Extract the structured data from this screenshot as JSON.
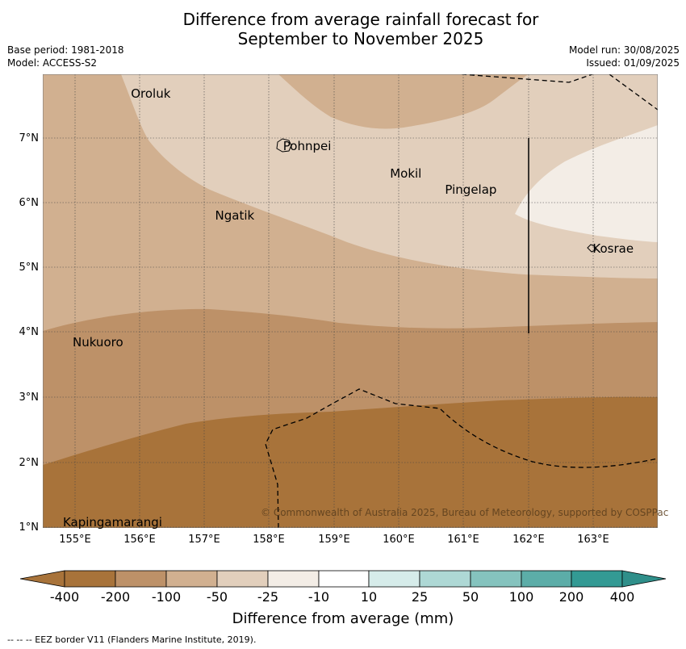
{
  "title_line1": "Difference from average rainfall forecast for",
  "title_line2": "September to November 2025",
  "base_period": "Base period: 1981-2018",
  "model": "Model: ACCESS-S2",
  "model_run": "Model run: 30/08/2025",
  "issued": "Issued: 01/09/2025",
  "copyright": "© Commonwealth of Australia 2025, Bureau of Meteorology, supported by COSPPac",
  "places": [
    {
      "name": "Oroluk",
      "lon": 155.85,
      "lat": 7.68
    },
    {
      "name": "Pohnpei",
      "lon": 158.2,
      "lat": 6.87
    },
    {
      "name": "Mokil",
      "lon": 159.85,
      "lat": 6.45
    },
    {
      "name": "Pingelap",
      "lon": 160.7,
      "lat": 6.2
    },
    {
      "name": "Ngatik",
      "lon": 157.15,
      "lat": 5.8
    },
    {
      "name": "Kosrae",
      "lon": 162.98,
      "lat": 5.3
    },
    {
      "name": "Nukuoro",
      "lon": 154.95,
      "lat": 3.85
    },
    {
      "name": "Kapingamarangi",
      "lon": 154.8,
      "lat": 1.07
    }
  ],
  "latitude_ticks": [
    "7°N",
    "6°N",
    "5°N",
    "4°N",
    "3°N",
    "2°N",
    "1°N"
  ],
  "longitude_ticks": [
    "155°E",
    "156°E",
    "157°E",
    "158°E",
    "159°E",
    "160°E",
    "161°E",
    "162°E",
    "163°E"
  ],
  "colorbar": {
    "title": "Difference from average (mm)",
    "labels": [
      "-400",
      "-200",
      "-100",
      "-50",
      "-25",
      "-10",
      "10",
      "25",
      "50",
      "100",
      "200",
      "400"
    ],
    "colors": [
      "#a8733a",
      "#bd9168",
      "#d1b090",
      "#e2cfbc",
      "#f3ede6",
      "#ffffff",
      "#d6ecea",
      "#aed8d5",
      "#85c3be",
      "#5cada8",
      "#339a94",
      "#2f8f8a"
    ]
  },
  "legend_source": "--  --  -- EEZ border V11 (Flanders Marine Institute, 2019)."
}
